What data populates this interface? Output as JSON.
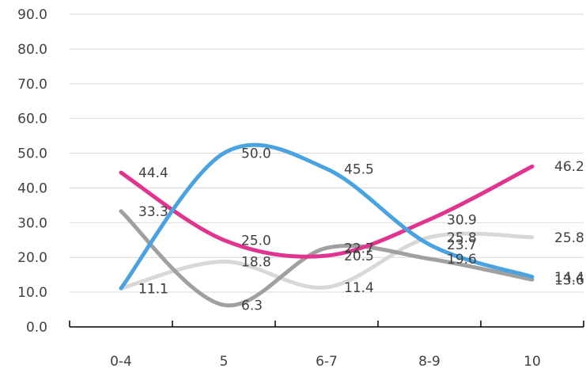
{
  "chart_data": {
    "type": "line",
    "title": "",
    "xlabel": "",
    "ylabel": "",
    "categories": [
      "0-4",
      "5",
      "6-7",
      "8-9",
      "10"
    ],
    "ylim": [
      0,
      90
    ],
    "yticks": [
      "0.0",
      "10.0",
      "20.0",
      "30.0",
      "40.0",
      "50.0",
      "60.0",
      "70.0",
      "80.0",
      "90.0"
    ],
    "grid": true,
    "legend": "none",
    "series": [
      {
        "color": "#4aa3df",
        "values": [
          11.1,
          50.0,
          45.5,
          23.7,
          14.4
        ]
      },
      {
        "color": "#e0358f",
        "values": [
          44.4,
          25.0,
          20.5,
          30.9,
          46.2
        ]
      },
      {
        "color": "#a0a0a0",
        "values": [
          33.3,
          6.3,
          22.7,
          19.6,
          13.6
        ]
      },
      {
        "color": "#d8d8d8",
        "values": [
          11.1,
          18.8,
          11.4,
          25.8,
          25.8
        ]
      }
    ]
  }
}
